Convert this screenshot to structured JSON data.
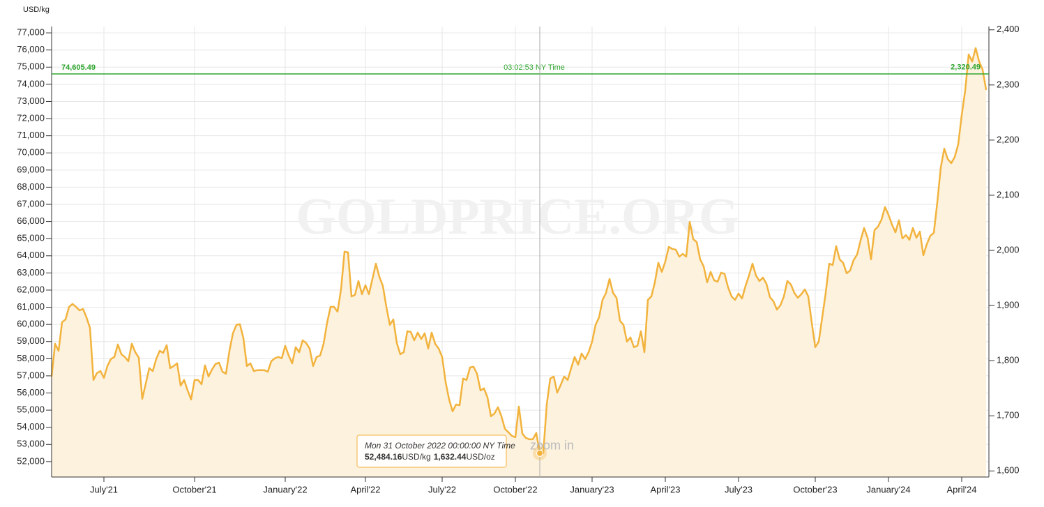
{
  "chart_data": {
    "type": "line",
    "unit_label": "USD/kg",
    "watermark": "GOLDPRICE.ORG",
    "hint": "zoom in",
    "color": "#f2b33d",
    "fill_color": "#fdf2de",
    "grid": true,
    "ylim": [
      51100,
      77370
    ],
    "yticks": [
      {
        "value": 52000,
        "label": "52,000"
      },
      {
        "value": 53000,
        "label": "53,000"
      },
      {
        "value": 54000,
        "label": "54,000"
      },
      {
        "value": 55000,
        "label": "55,000"
      },
      {
        "value": 56000,
        "label": "56,000"
      },
      {
        "value": 57000,
        "label": "57,000"
      },
      {
        "value": 58000,
        "label": "58,000"
      },
      {
        "value": 59000,
        "label": "59,000"
      },
      {
        "value": 60000,
        "label": "60,000"
      },
      {
        "value": 61000,
        "label": "61,000"
      },
      {
        "value": 62000,
        "label": "62,000"
      },
      {
        "value": 63000,
        "label": "63,000"
      },
      {
        "value": 64000,
        "label": "64,000"
      },
      {
        "value": 65000,
        "label": "65,000"
      },
      {
        "value": 66000,
        "label": "66,000"
      },
      {
        "value": 67000,
        "label": "67,000"
      },
      {
        "value": 68000,
        "label": "68,000"
      },
      {
        "value": 69000,
        "label": "69,000"
      },
      {
        "value": 70000,
        "label": "70,000"
      },
      {
        "value": 71000,
        "label": "71,000"
      },
      {
        "value": 72000,
        "label": "72,000"
      },
      {
        "value": 73000,
        "label": "73,000"
      },
      {
        "value": 74000,
        "label": "74,000"
      },
      {
        "value": 75000,
        "label": "75,000"
      },
      {
        "value": 76000,
        "label": "76,000"
      },
      {
        "value": 77000,
        "label": "77,000"
      }
    ],
    "y2lim": [
      1589,
      2406
    ],
    "y2ticks": [
      {
        "value": 1600,
        "label": "1,600"
      },
      {
        "value": 1700,
        "label": "1,700"
      },
      {
        "value": 1800,
        "label": "1,800"
      },
      {
        "value": 1900,
        "label": "1,900"
      },
      {
        "value": 2000,
        "label": "2,000"
      },
      {
        "value": 2100,
        "label": "2,100"
      },
      {
        "value": 2200,
        "label": "2,200"
      },
      {
        "value": 2300,
        "label": "2,300"
      },
      {
        "value": 2400,
        "label": "2,400"
      }
    ],
    "reference_line": {
      "value": 74605.49,
      "label": "74,605.49",
      "time": "03:02:53 NY Time",
      "y2_value": 2320.49,
      "y2_label": "2,320.49",
      "color": "#2ea52e"
    },
    "tooltip": {
      "date": "Mon 31 October 2022 00:00:00 NY Time",
      "value": 52484.16,
      "label": "52,484.16",
      "unit": "USD/kg",
      "oz_label": "1,632.44",
      "oz_unit": "USD/oz"
    },
    "categories": [
      null,
      null,
      null,
      null,
      null,
      null,
      null,
      null,
      null,
      null,
      null,
      null,
      null,
      null,
      null,
      "July'21",
      null,
      null,
      null,
      null,
      null,
      null,
      null,
      null,
      null,
      null,
      null,
      null,
      null,
      null,
      null,
      null,
      null,
      null,
      null,
      null,
      null,
      null,
      null,
      null,
      null,
      "October'21",
      null,
      null,
      null,
      null,
      null,
      null,
      null,
      null,
      null,
      null,
      null,
      null,
      null,
      null,
      null,
      null,
      null,
      null,
      null,
      null,
      null,
      null,
      null,
      null,
      null,
      "January'22",
      null,
      null,
      null,
      null,
      null,
      null,
      null,
      null,
      null,
      null,
      null,
      null,
      null,
      null,
      null,
      null,
      null,
      null,
      null,
      null,
      null,
      null,
      "April'22",
      null,
      null,
      null,
      null,
      null,
      null,
      null,
      null,
      null,
      null,
      null,
      null,
      null,
      null,
      null,
      null,
      null,
      null,
      null,
      null,
      null,
      "July'22",
      null,
      null,
      null,
      null,
      null,
      null,
      null,
      null,
      null,
      null,
      null,
      null,
      null,
      null,
      null,
      null,
      null,
      null,
      null,
      null,
      "October'22",
      null,
      null,
      null,
      null,
      null,
      null,
      null,
      null,
      null,
      null,
      null,
      null,
      null,
      null,
      null,
      null,
      null,
      null,
      null,
      null,
      null,
      "January'23",
      null,
      null,
      null,
      null,
      null,
      null,
      null,
      null,
      null,
      null,
      null,
      null,
      null,
      null,
      null,
      null,
      null,
      null,
      null,
      null,
      "April'23",
      null,
      null,
      null,
      null,
      null,
      null,
      null,
      null,
      null,
      null,
      null,
      null,
      null,
      null,
      null,
      null,
      null,
      null,
      null,
      null,
      "July'23",
      null,
      null,
      null,
      null,
      null,
      null,
      null,
      null,
      null,
      null,
      null,
      null,
      null,
      null,
      null,
      null,
      null,
      null,
      null,
      null,
      null,
      "October'23",
      null,
      null,
      null,
      null,
      null,
      null,
      null,
      null,
      null,
      null,
      null,
      null,
      null,
      null,
      null,
      null,
      null,
      null,
      null,
      null,
      "January'24",
      null,
      null,
      null,
      null,
      null,
      null,
      null,
      null,
      null,
      null,
      null,
      null,
      null,
      null,
      null,
      null,
      null,
      null,
      null,
      null,
      "April'24",
      null,
      null,
      null,
      null,
      null,
      null,
      null
    ],
    "values": [
      56960,
      58870,
      58460,
      60130,
      60290,
      61020,
      61190,
      61020,
      60820,
      60900,
      60410,
      59800,
      56760,
      57160,
      57280,
      56880,
      57570,
      57980,
      58100,
      58830,
      58260,
      58100,
      57850,
      58870,
      58380,
      58060,
      55660,
      56550,
      57450,
      57280,
      57980,
      58460,
      58340,
      58790,
      57450,
      57570,
      57730,
      56430,
      56760,
      56150,
      55620,
      56760,
      56760,
      56510,
      57610,
      56960,
      57370,
      57690,
      57770,
      57240,
      57120,
      58460,
      59480,
      59970,
      60010,
      59200,
      57570,
      57730,
      57280,
      57330,
      57330,
      57330,
      57240,
      57850,
      58020,
      58100,
      58020,
      58750,
      58180,
      57730,
      58670,
      58380,
      59070,
      58910,
      58590,
      57570,
      58100,
      58180,
      58870,
      60090,
      61020,
      61020,
      60740,
      62040,
      64240,
      64200,
      61630,
      61720,
      62530,
      61760,
      62280,
      61760,
      62650,
      63540,
      62770,
      62240,
      61020,
      59970,
      60290,
      58910,
      58260,
      58380,
      59600,
      59560,
      59070,
      59520,
      59150,
      59480,
      58590,
      59520,
      58870,
      58590,
      58100,
      56630,
      55620,
      54930,
      55330,
      55290,
      56840,
      56760,
      57490,
      57530,
      57120,
      56150,
      56270,
      55740,
      54640,
      54800,
      55170,
      54640,
      53910,
      53710,
      53500,
      53420,
      55210,
      53630,
      53380,
      53300,
      53300,
      53670,
      52484.16,
      52490,
      55330,
      56840,
      56960,
      56020,
      56470,
      56960,
      56760,
      57450,
      58100,
      57650,
      58300,
      57980,
      58380,
      58990,
      59970,
      60410,
      61430,
      61840,
      62650,
      61840,
      61550,
      60210,
      59970,
      58990,
      59240,
      58670,
      58750,
      59600,
      58380,
      61430,
      61630,
      62450,
      63590,
      63060,
      63670,
      64520,
      64400,
      64360,
      63950,
      64110,
      63950,
      65980,
      64970,
      64800,
      63790,
      63380,
      62450,
      63060,
      62570,
      62490,
      63020,
      62940,
      62160,
      61630,
      61430,
      61800,
      61510,
      62240,
      62850,
      63540,
      62850,
      62530,
      62730,
      62370,
      61590,
      61350,
      60860,
      61110,
      61630,
      62530,
      62330,
      61840,
      61550,
      61760,
      62040,
      61630,
      60090,
      58670,
      58990,
      60410,
      61840,
      63540,
      63460,
      64560,
      63790,
      63590,
      62980,
      63140,
      63750,
      64070,
      64890,
      65620,
      65050,
      63790,
      65500,
      65700,
      66110,
      66840,
      66390,
      65820,
      65370,
      66070,
      65010,
      65210,
      64930,
      65620,
      65050,
      65410,
      64030,
      64680,
      65170,
      65330,
      67120,
      69150,
      70250,
      69640,
      69400,
      69760,
      70500,
      72200,
      73630,
      75740,
      75330,
      76110,
      75330,
      74850,
      73670
    ]
  }
}
